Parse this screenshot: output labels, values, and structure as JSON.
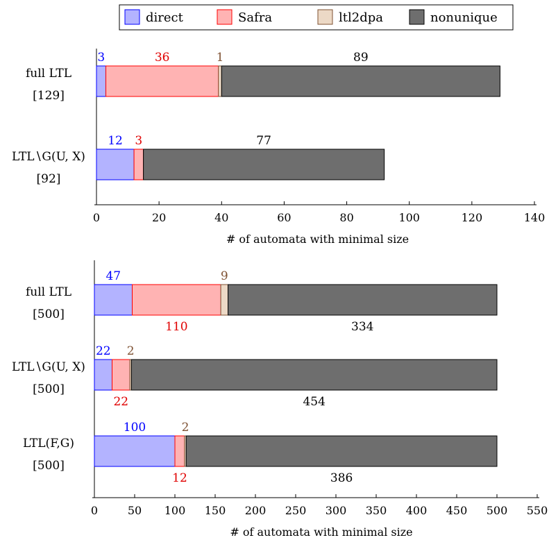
{
  "legend": {
    "items": [
      {
        "label": "direct",
        "color": "#b3b3ff",
        "border": "#0000ff"
      },
      {
        "label": "Safra",
        "color": "#ffb3b3",
        "border": "#ff0000"
      },
      {
        "label": "ltl2dpa",
        "color": "#ecd9c6",
        "border": "#7f5233"
      },
      {
        "label": "nonunique",
        "color": "#6e6e6e",
        "border": "#000000"
      }
    ]
  },
  "chart_data": [
    {
      "type": "bar",
      "orientation": "horizontal",
      "stacked": true,
      "xlabel": "# of automata with minimal size",
      "xlim": [
        0,
        140
      ],
      "xticks": [
        0,
        20,
        40,
        60,
        80,
        100,
        120,
        140
      ],
      "grid": false,
      "legend_position": "top",
      "categories": [
        {
          "name": "full LTL",
          "count": "[129]"
        },
        {
          "name": "LTL∖G(U, X)",
          "count": "[92]"
        }
      ],
      "series": [
        {
          "name": "direct",
          "values": [
            3,
            12
          ]
        },
        {
          "name": "Safra",
          "values": [
            36,
            3
          ]
        },
        {
          "name": "ltl2dpa",
          "values": [
            1,
            0
          ]
        },
        {
          "name": "nonunique",
          "values": [
            89,
            77
          ]
        }
      ],
      "data_labels": [
        [
          "3",
          "36",
          "1",
          "89"
        ],
        [
          "12",
          "3",
          "",
          "77"
        ]
      ],
      "label_positions": [
        [
          "above",
          "above",
          "above",
          "above"
        ],
        [
          "above",
          "above",
          "",
          "above"
        ]
      ]
    },
    {
      "type": "bar",
      "orientation": "horizontal",
      "stacked": true,
      "xlabel": "# of automata with minimal size",
      "xlim": [
        0,
        550
      ],
      "xticks": [
        0,
        50,
        100,
        150,
        200,
        250,
        300,
        350,
        400,
        450,
        500,
        550
      ],
      "grid": false,
      "categories": [
        {
          "name": "full LTL",
          "count": "[500]"
        },
        {
          "name": "LTL∖G(U, X)",
          "count": "[500]"
        },
        {
          "name": "LTL(F,G)",
          "count": "[500]"
        }
      ],
      "series": [
        {
          "name": "direct",
          "values": [
            47,
            22,
            100
          ]
        },
        {
          "name": "Safra",
          "values": [
            110,
            22,
            12
          ]
        },
        {
          "name": "ltl2dpa",
          "values": [
            9,
            2,
            2
          ]
        },
        {
          "name": "nonunique",
          "values": [
            334,
            454,
            386
          ]
        }
      ],
      "data_labels": [
        [
          "47",
          "110",
          "9",
          "334"
        ],
        [
          "22",
          "22",
          "2",
          "454"
        ],
        [
          "100",
          "12",
          "2",
          "386"
        ]
      ],
      "label_positions": [
        [
          "above",
          "below",
          "above",
          "below"
        ],
        [
          "above",
          "below",
          "above",
          "below"
        ],
        [
          "above",
          "below",
          "above",
          "below"
        ]
      ]
    }
  ]
}
